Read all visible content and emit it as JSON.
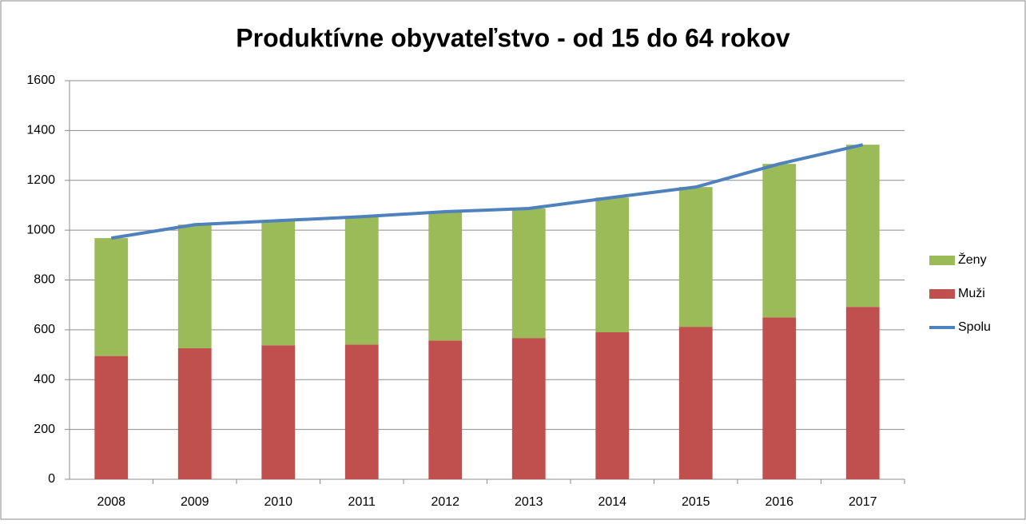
{
  "chart_data": {
    "type": "bar",
    "stacked": true,
    "title": "Produktívne obyvateľstvo - od 15 do 64 rokov",
    "categories": [
      "2008",
      "2009",
      "2010",
      "2011",
      "2012",
      "2013",
      "2014",
      "2015",
      "2016",
      "2017"
    ],
    "series": [
      {
        "name": "Muži",
        "color": "#c0504d",
        "type": "bar",
        "values": [
          495,
          526,
          538,
          541,
          557,
          567,
          590,
          612,
          650,
          692
        ]
      },
      {
        "name": "Ženy",
        "color": "#9bbb59",
        "type": "bar",
        "values": [
          473,
          496,
          500,
          513,
          517,
          520,
          541,
          561,
          616,
          651
        ]
      },
      {
        "name": "Spolu",
        "color": "#4f81bd",
        "type": "line",
        "values": [
          968,
          1022,
          1038,
          1054,
          1074,
          1087,
          1131,
          1173,
          1266,
          1343
        ]
      }
    ],
    "ylim": [
      0,
      1600
    ],
    "yticks": [
      0,
      200,
      400,
      600,
      800,
      1000,
      1200,
      1400,
      1600
    ],
    "grid": true,
    "legend": "right"
  }
}
